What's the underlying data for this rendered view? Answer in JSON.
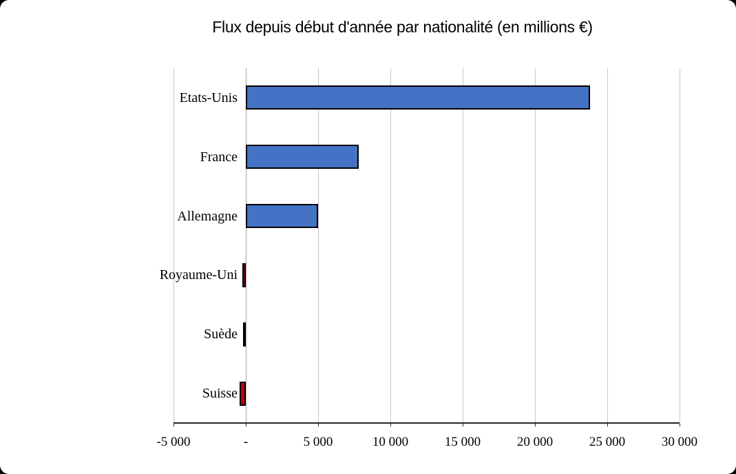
{
  "title": "Flux depuis début d'année par nationalité (en millions €)",
  "chart_data": {
    "type": "bar",
    "orientation": "horizontal",
    "title": "Flux depuis début d'année par nationalité (en millions €)",
    "categories": [
      "Etats-Unis",
      "France",
      "Allemagne",
      "Royaume-Uni",
      "Suède",
      "Suisse"
    ],
    "values": [
      23800,
      7800,
      5000,
      -250,
      -200,
      -450
    ],
    "xlim": [
      -5000,
      30000
    ],
    "x_ticks": [
      {
        "value": -5000,
        "label": "-5 000"
      },
      {
        "value": 0,
        "label": "-"
      },
      {
        "value": 5000,
        "label": "5 000"
      },
      {
        "value": 10000,
        "label": "10 000"
      },
      {
        "value": 15000,
        "label": "15 000"
      },
      {
        "value": 20000,
        "label": "20 000"
      },
      {
        "value": 25000,
        "label": "25 000"
      },
      {
        "value": 30000,
        "label": "30 000"
      }
    ],
    "colors": {
      "positive_bar": "#4472C4",
      "negative_bar": "#C00000",
      "bar_border": "#000000",
      "gridline": "#C6C6C6",
      "zero_line": "#A6A6A6",
      "axis_line": "#262626",
      "text": "#000000"
    },
    "grid": true,
    "legend": false,
    "xlabel": "",
    "ylabel": ""
  }
}
